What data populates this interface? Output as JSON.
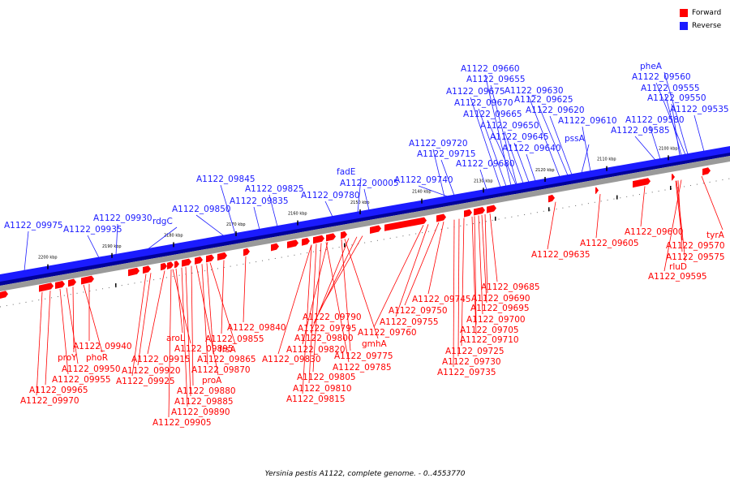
{
  "legend": {
    "forward": "Forward",
    "reverse": "Reverse",
    "forward_color": "#ff0000",
    "reverse_color": "#1b1bff"
  },
  "caption": "Yersinia pestis A1122, complete genome. - 0..4553770",
  "ticks": [
    "2100 kbp",
    "2110 kbp",
    "2120 kbp",
    "2130 kbp",
    "2140 kbp",
    "2150 kbp",
    "2160 kbp",
    "2170 kbp",
    "2180 kbp",
    "2190 kbp",
    "2200 kbp"
  ],
  "reverse_labels": [
    "A1122_09975",
    "A1122_09935",
    "A1122_09930",
    "rdgC",
    "A1122_09850",
    "A1122_09845",
    "A1122_09835",
    "A1122_09825",
    "A1122_09780",
    "fadE",
    "A1122_00005",
    "A1122_09740",
    "A1122_09715",
    "A1122_09720",
    "A1122_09680",
    "A1122_09660",
    "A1122_09655",
    "A1122_09675",
    "A1122_09670",
    "A1122_09665",
    "A1122_09650",
    "A1122_09645",
    "A1122_09640",
    "A1122_09630",
    "A1122_09625",
    "A1122_09620",
    "A1122_09610",
    "pssA",
    "pheA",
    "A1122_09560",
    "A1122_09555",
    "A1122_09550",
    "A1122_09580",
    "A1122_09585",
    "A1122_09535"
  ],
  "forward_labels": [
    "A1122_09635",
    "A1122_09605",
    "A1122_09600",
    "A1122_09570",
    "A1122_09575",
    "rluD",
    "A1122_09595",
    "tyrA",
    "A1122_09685",
    "A1122_09690",
    "A1122_09695",
    "A1122_09700",
    "A1122_09705",
    "A1122_09710",
    "A1122_09725",
    "A1122_09730",
    "A1122_09735",
    "A1122_09745",
    "A1122_09750",
    "A1122_09755",
    "A1122_09760",
    "A1122_09790",
    "A1122_09795",
    "A1122_09800",
    "gmhA",
    "A1122_09775",
    "A1122_09820",
    "A1122_09785",
    "A1122_09830",
    "A1122_09805",
    "A1122_09810",
    "A1122_09815",
    "A1122_09840",
    "A1122_09855",
    "frsA",
    "A1122_09865",
    "A1122_09870",
    "proA",
    "aroL",
    "A1122_09895",
    "A1122_09915",
    "A1122_09920",
    "A1122_09925",
    "A1122_09880",
    "A1122_09885",
    "A1122_09890",
    "A1122_09905",
    "A1122_09940",
    "phoR",
    "proY",
    "A1122_09950",
    "A1122_09955",
    "A1122_09965",
    "A1122_09970"
  ]
}
